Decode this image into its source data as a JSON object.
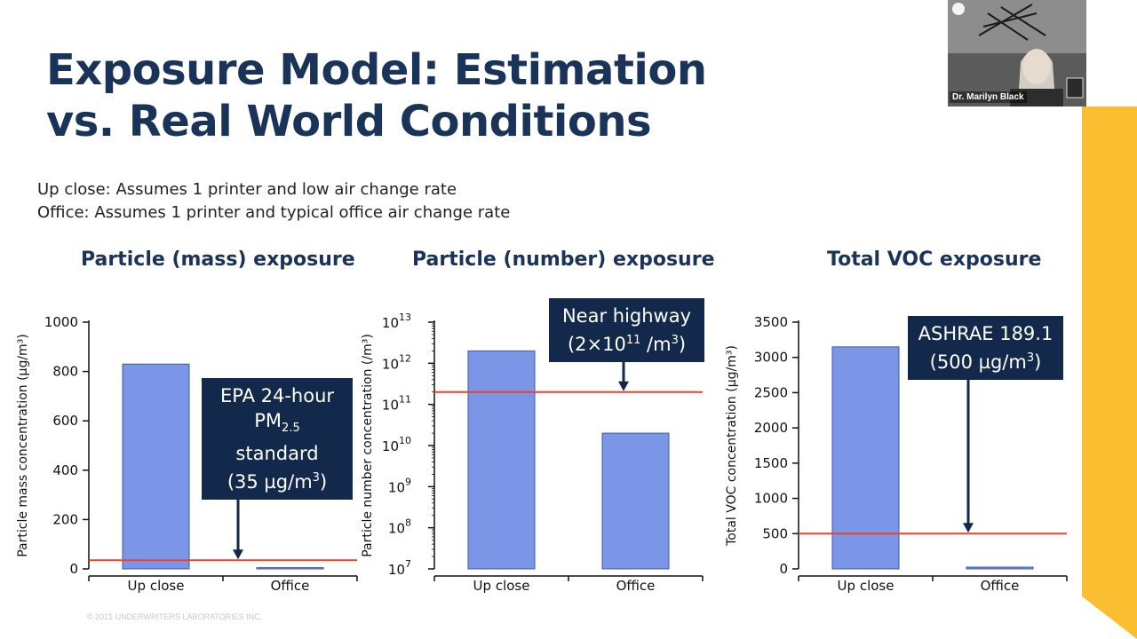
{
  "slide": {
    "title_line1": "Exposure Model: Estimation",
    "title_line2": "vs. Real World Conditions",
    "subtitle_line1": "Up close: Assumes 1 printer and low air change rate",
    "subtitle_line2": "Office: Assumes 1 printer and typical office air change rate",
    "copyright": "© 2021 UNDERWRITERS LABORATORIES INC.",
    "accent_color": "#fbbe30",
    "title_color": "#1a3358"
  },
  "video": {
    "participant_name": "Dr. Marilyn Black"
  },
  "chart_data": [
    {
      "type": "bar",
      "title": "Particle (mass) exposure",
      "ylabel": "Particle mass concentration (µg/m³)",
      "categories": [
        "Up close",
        "Office"
      ],
      "values": [
        830,
        5
      ],
      "ylim": [
        0,
        1000
      ],
      "yticks": [
        "0",
        "200",
        "400",
        "600",
        "800",
        "1000"
      ],
      "reference_line": {
        "value": 35,
        "color": "#e8432b"
      },
      "callout": {
        "line1": "EPA 24-hour",
        "line2": "PM",
        "line2_sub": "2.5",
        "line3": "standard",
        "line4": "(35 µg/m",
        "line4_sup": "3",
        "line4_end": ")"
      },
      "bar_color": "#7b96e6",
      "grid": false
    },
    {
      "type": "bar",
      "title": "Particle (number) exposure",
      "ylabel": "Particle number concentration (/m³)",
      "yscale": "log",
      "categories": [
        "Up close",
        "Office"
      ],
      "values": [
        2000000000000.0,
        20000000000.0
      ],
      "ylim": [
        10000000.0,
        10000000000000.0
      ],
      "yticks": [
        "7",
        "8",
        "9",
        "10",
        "11",
        "12",
        "13"
      ],
      "ytick_base": "10",
      "reference_line": {
        "value": 200000000000.0,
        "color": "#e8432b"
      },
      "callout": {
        "line1": "Near highway",
        "line2": "(2×10",
        "line2_sup": "11",
        "line2_end": " /m",
        "line2_sup2": "3",
        "line2_end2": ")"
      },
      "bar_color": "#7b96e6",
      "grid": false
    },
    {
      "type": "bar",
      "title": "Total VOC exposure",
      "ylabel": "Total VOC concentration (µg/m³)",
      "categories": [
        "Up close",
        "Office"
      ],
      "values": [
        3150,
        25
      ],
      "ylim": [
        0,
        3500
      ],
      "yticks": [
        "0",
        "500",
        "1000",
        "1500",
        "2000",
        "2500",
        "3000",
        "3500"
      ],
      "reference_line": {
        "value": 500,
        "color": "#e8432b"
      },
      "callout": {
        "line1": "ASHRAE 189.1",
        "line2": "(500 µg/m",
        "line2_sup": "3",
        "line2_end": ")"
      },
      "bar_color": "#7b96e6",
      "grid": false
    }
  ]
}
